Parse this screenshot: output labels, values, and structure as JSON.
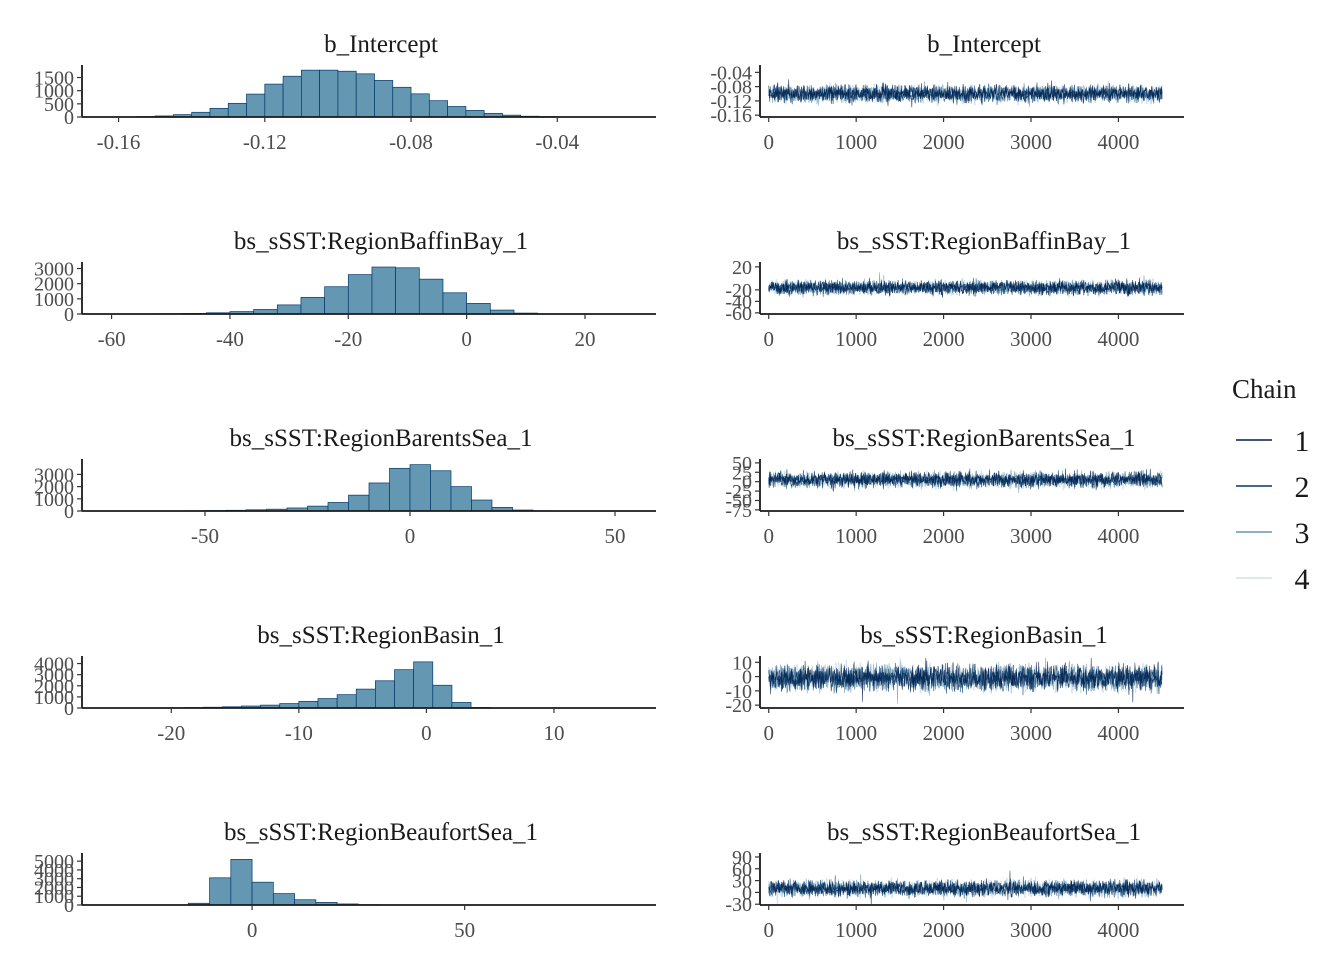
{
  "chart_data": [
    {
      "type": "bar",
      "panel": "histogram",
      "title": "b_Intercept",
      "bins": [
        -0.16,
        -0.155,
        -0.15,
        -0.145,
        -0.14,
        -0.135,
        -0.13,
        -0.125,
        -0.12,
        -0.115,
        -0.11,
        -0.105,
        -0.1,
        -0.095,
        -0.09,
        -0.085,
        -0.08,
        -0.075,
        -0.07,
        -0.065,
        -0.06,
        -0.055,
        -0.05,
        -0.045,
        -0.04,
        -0.035,
        -0.03
      ],
      "counts": [
        5,
        15,
        40,
        90,
        180,
        330,
        520,
        870,
        1250,
        1550,
        1780,
        1780,
        1740,
        1640,
        1390,
        1130,
        880,
        620,
        400,
        250,
        140,
        70,
        30,
        15,
        6,
        2
      ],
      "xlim": [
        -0.17,
        -0.013
      ],
      "xticks": [
        "-0.16",
        "-0.12",
        "-0.08",
        "-0.04"
      ],
      "ylim": [
        0,
        1900
      ],
      "yticks": [
        "0",
        "500",
        "1000",
        "1500"
      ]
    },
    {
      "type": "bar",
      "panel": "histogram",
      "title": "bs_sSST:RegionBaffinBay_1",
      "bins": [
        -60,
        -56,
        -52,
        -48,
        -44,
        -40,
        -36,
        -32,
        -28,
        -24,
        -20,
        -16,
        -12,
        -8,
        -4,
        0,
        4,
        8,
        12
      ],
      "counts": [
        3,
        8,
        20,
        40,
        80,
        160,
        300,
        600,
        1100,
        1800,
        2600,
        3100,
        3050,
        2300,
        1400,
        700,
        260,
        60
      ],
      "xlim": [
        -65,
        32
      ],
      "xticks": [
        "-60",
        "-40",
        "-20",
        "0",
        "20"
      ],
      "ylim": [
        0,
        3300
      ],
      "yticks": [
        "0",
        "1000",
        "2000",
        "3000"
      ]
    },
    {
      "type": "bar",
      "panel": "histogram",
      "title": "bs_sSST:RegionBarentsSea_1",
      "bins": [
        -80,
        -75,
        -70,
        -65,
        -60,
        -55,
        -50,
        -45,
        -40,
        -35,
        -30,
        -25,
        -20,
        -15,
        -10,
        -5,
        0,
        5,
        10,
        15,
        20,
        25,
        30,
        35,
        40
      ],
      "counts": [
        2,
        3,
        5,
        8,
        12,
        20,
        40,
        60,
        100,
        150,
        250,
        400,
        700,
        1300,
        2300,
        3500,
        3800,
        3300,
        2000,
        900,
        300,
        80,
        20,
        5
      ],
      "xlim": [
        -80,
        60
      ],
      "xticks": [
        "-50",
        "0",
        "50"
      ],
      "ylim": [
        0,
        4100
      ],
      "yticks": [
        "0",
        "1000",
        "2000",
        "3000"
      ]
    },
    {
      "type": "bar",
      "panel": "histogram",
      "title": "bs_sSST:RegionBasin_1",
      "bins": [
        -25,
        -23.5,
        -22,
        -20.5,
        -19,
        -17.5,
        -16,
        -14.5,
        -13,
        -11.5,
        -10,
        -8.5,
        -7,
        -5.5,
        -4,
        -2.5,
        -1,
        0.5,
        2,
        3.5,
        5,
        6.5
      ],
      "counts": [
        2,
        4,
        10,
        20,
        40,
        70,
        110,
        180,
        260,
        400,
        600,
        850,
        1200,
        1700,
        2450,
        3450,
        4150,
        2050,
        500,
        50,
        5
      ],
      "xlim": [
        -27,
        18
      ],
      "xticks": [
        "-20",
        "-10",
        "0",
        "10"
      ],
      "ylim": [
        0,
        4500
      ],
      "yticks": [
        "0",
        "1000",
        "2000",
        "3000",
        "4000"
      ]
    },
    {
      "type": "bar",
      "panel": "histogram",
      "title": "bs_sSST:RegionBeaufortSea_1",
      "bins": [
        -20,
        -15,
        -10,
        -5,
        0,
        5,
        10,
        15,
        20,
        25,
        30,
        35,
        40
      ],
      "counts": [
        10,
        200,
        3100,
        5200,
        2600,
        1300,
        600,
        300,
        120,
        40,
        10,
        3
      ],
      "xlim": [
        -40,
        95
      ],
      "xticks": [
        "0",
        "50"
      ],
      "ylim": [
        0,
        5700
      ],
      "yticks": [
        "0",
        "1000",
        "2000",
        "3000",
        "4000",
        "5000"
      ]
    },
    {
      "type": "line",
      "panel": "trace",
      "title": "b_Intercept",
      "iterations": 4500,
      "center": -0.1,
      "spread": 0.035,
      "xlim": [
        -100,
        4750
      ],
      "xticks": [
        "0",
        "1000",
        "2000",
        "3000",
        "4000"
      ],
      "ylim": [
        -0.165,
        -0.025
      ],
      "yticks": [
        "-0.04",
        "-0.08",
        "-0.12",
        "-0.16"
      ]
    },
    {
      "type": "line",
      "panel": "trace",
      "title": "bs_sSST:RegionBaffinBay_1",
      "iterations": 4500,
      "center": -16,
      "spread": 18,
      "xlim": [
        -100,
        4750
      ],
      "xticks": [
        "0",
        "1000",
        "2000",
        "3000",
        "4000"
      ],
      "ylim": [
        -62,
        25
      ],
      "yticks": [
        "20",
        "-20",
        "-40",
        "-60"
      ]
    },
    {
      "type": "line",
      "panel": "trace",
      "title": "bs_sSST:RegionBarentsSea_1",
      "iterations": 4500,
      "center": 5,
      "spread": 30,
      "xlim": [
        -100,
        4750
      ],
      "xticks": [
        "0",
        "1000",
        "2000",
        "3000",
        "4000"
      ],
      "ylim": [
        -78,
        55
      ],
      "yticks": [
        "50",
        "25",
        "0",
        "-25",
        "-50",
        "-75"
      ]
    },
    {
      "type": "line",
      "panel": "trace",
      "title": "bs_sSST:RegionBasin_1",
      "iterations": 4500,
      "center": -1,
      "spread": 13,
      "xlim": [
        -100,
        4750
      ],
      "xticks": [
        "0",
        "1000",
        "2000",
        "3000",
        "4000"
      ],
      "ylim": [
        -22,
        13
      ],
      "yticks": [
        "10",
        "0",
        "-10",
        "-20"
      ]
    },
    {
      "type": "line",
      "panel": "trace",
      "title": "bs_sSST:RegionBeaufortSea_1",
      "iterations": 4500,
      "center": 10,
      "spread": 30,
      "xlim": [
        -100,
        4750
      ],
      "xticks": [
        "0",
        "1000",
        "2000",
        "3000",
        "4000"
      ],
      "ylim": [
        -32,
        95
      ],
      "yticks": [
        "90",
        "60",
        "30",
        "0",
        "-30"
      ]
    }
  ],
  "legend": {
    "title": "Chain",
    "placement": "right",
    "items": [
      "1",
      "2",
      "3",
      "4"
    ],
    "colors": [
      "#011f4b",
      "#03396c",
      "#6497b1",
      "#d1e1ec"
    ]
  },
  "colors": {
    "histogram_fill": "#6497b1",
    "histogram_stroke": "#03396c",
    "trace_band": "#d1e1ec"
  }
}
